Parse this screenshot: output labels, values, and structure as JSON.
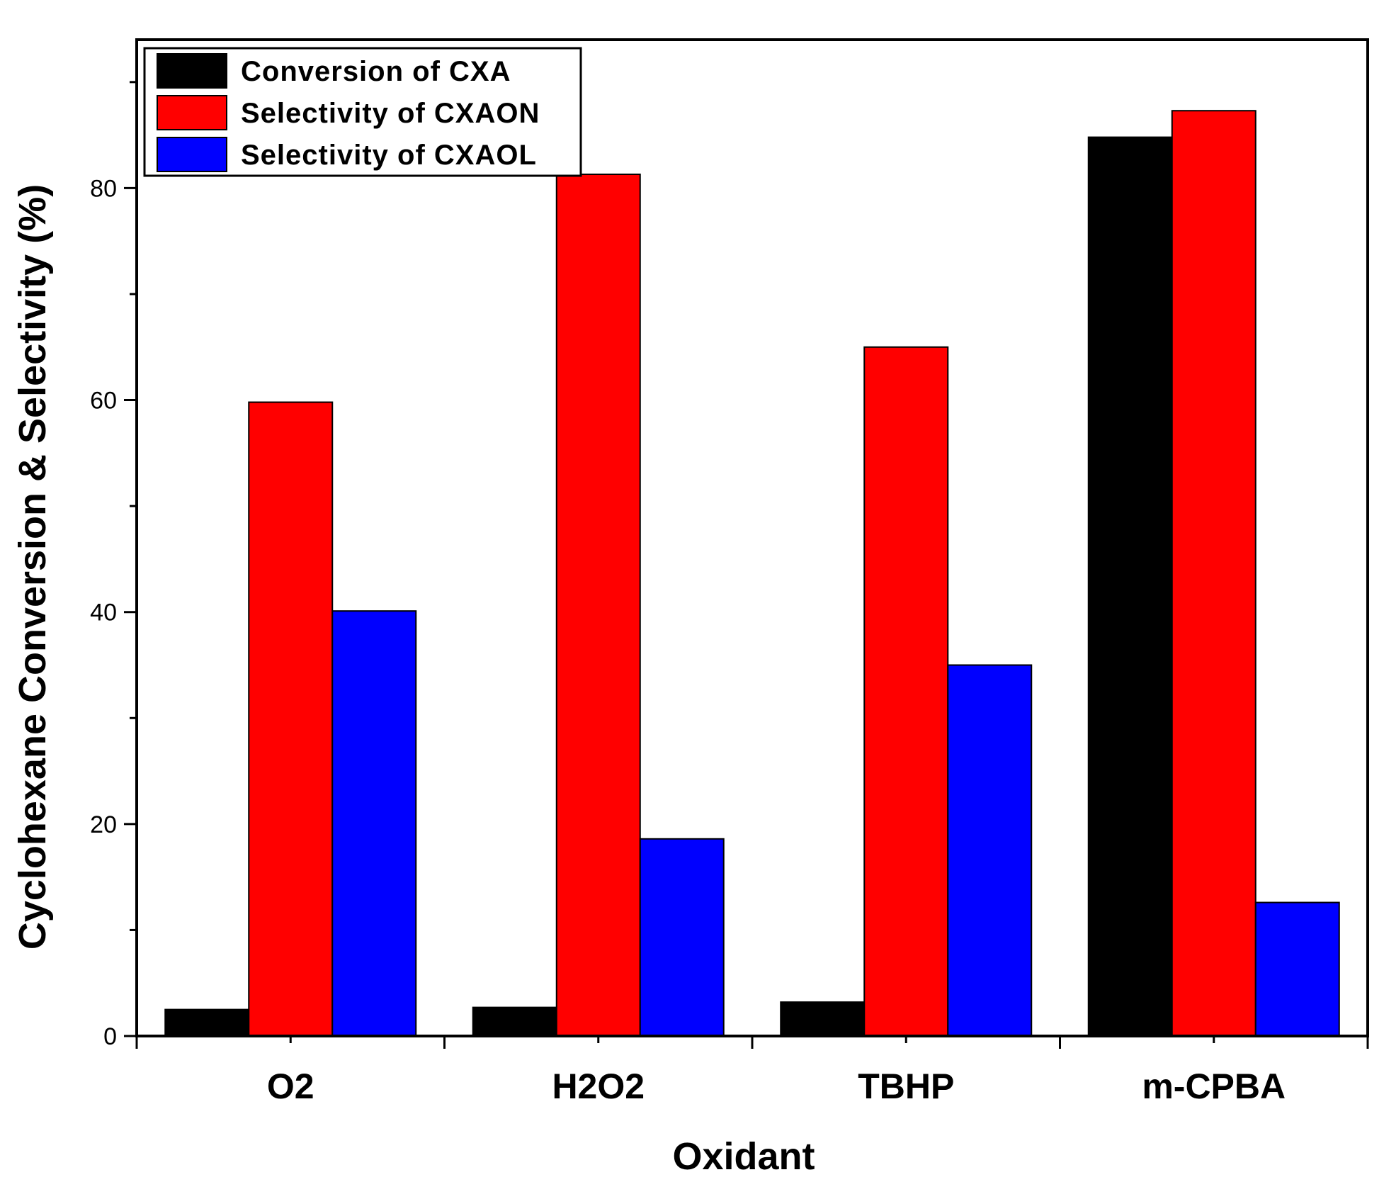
{
  "chart_data": {
    "type": "bar",
    "title": "",
    "xlabel": "Oxidant",
    "ylabel": "Cyclohexane Conversion & Selectivity (%)",
    "categories": [
      "O2",
      "H2O2",
      "TBHP",
      "m-CPBA"
    ],
    "series": [
      {
        "name": "Conversion of CXA",
        "color": "#000000",
        "values": [
          2.5,
          2.7,
          3.2,
          84.8
        ]
      },
      {
        "name": "Selectivity of CXAON",
        "color": "#ff0000",
        "values": [
          59.8,
          81.3,
          65.0,
          87.3
        ]
      },
      {
        "name": "Selectivity of CXAOL",
        "color": "#0000ff",
        "values": [
          40.1,
          18.6,
          35.0,
          12.6
        ]
      }
    ],
    "ylim": [
      0,
      94
    ],
    "yticks": [
      0,
      20,
      40,
      60,
      80
    ],
    "legend_position": "top-left",
    "grid": false
  }
}
